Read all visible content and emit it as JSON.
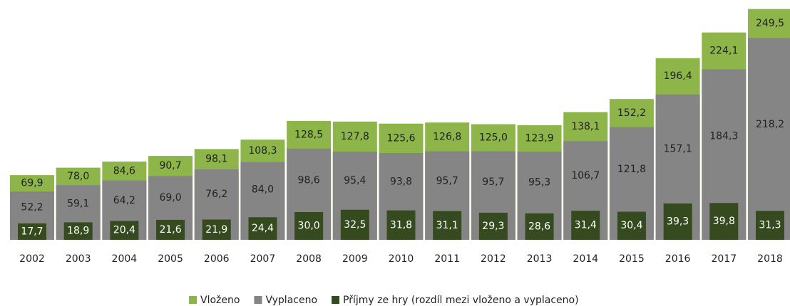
{
  "chart_data": {
    "type": "bar",
    "categories": [
      "2002",
      "2003",
      "2004",
      "2005",
      "2006",
      "2007",
      "2008",
      "2009",
      "2010",
      "2011",
      "2012",
      "2013",
      "2014",
      "2015",
      "2016",
      "2017",
      "2018"
    ],
    "series": [
      {
        "name": "Vloženo",
        "color": "#8eb54a",
        "values": [
          69.9,
          78.0,
          84.6,
          90.7,
          98.1,
          108.3,
          128.5,
          127.8,
          125.6,
          126.8,
          125.0,
          123.9,
          138.1,
          152.2,
          196.4,
          224.1,
          249.5
        ],
        "value_labels": [
          "69,9",
          "78,0",
          "84,6",
          "90,7",
          "98,1",
          "108,3",
          "128,5",
          "127,8",
          "125,6",
          "126,8",
          "125,0",
          "123,9",
          "138,1",
          "152,2",
          "196,4",
          "224,1",
          "249,5"
        ]
      },
      {
        "name": "Vyplaceno",
        "color": "#858585",
        "values": [
          52.2,
          59.1,
          64.2,
          69.0,
          76.2,
          84.0,
          98.6,
          95.4,
          93.8,
          95.7,
          95.7,
          95.3,
          106.7,
          121.8,
          157.1,
          184.3,
          218.2
        ],
        "value_labels": [
          "52,2",
          "59,1",
          "64,2",
          "69,0",
          "76,2",
          "84,0",
          "98,6",
          "95,4",
          "93,8",
          "95,7",
          "95,7",
          "95,3",
          "106,7",
          "121,8",
          "157,1",
          "184,3",
          "218,2"
        ]
      },
      {
        "name": "Příjmy ze hry (rozdíl mezi vloženo a vyplaceno)",
        "color": "#364a1f",
        "values": [
          17.7,
          18.9,
          20.4,
          21.6,
          21.9,
          24.4,
          30.0,
          32.5,
          31.8,
          31.1,
          29.3,
          28.6,
          31.4,
          30.4,
          39.3,
          39.8,
          31.3
        ],
        "value_labels": [
          "17,7",
          "18,9",
          "20,4",
          "21,6",
          "21,9",
          "24,4",
          "30,0",
          "32,5",
          "31,8",
          "31,1",
          "29,3",
          "28,6",
          "31,4",
          "30,4",
          "39,3",
          "39,8",
          "31,3"
        ]
      }
    ],
    "ylim": [
      0,
      250
    ]
  }
}
